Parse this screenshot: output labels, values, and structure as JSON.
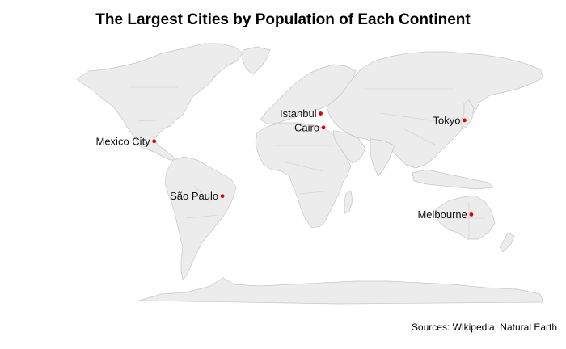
{
  "title": "The Largest Cities by Population of Each Continent",
  "sources": "Sources: Wikipedia, Natural Earth",
  "colors": {
    "land": "#ececec",
    "border": "#c6c6c6",
    "city": "#e00000",
    "background": "#ffffff"
  },
  "cities": [
    {
      "name": "Mexico City",
      "lon": -99.1,
      "lat": 19.4,
      "label_side": "left"
    },
    {
      "name": "São Paulo",
      "lon": -46.6,
      "lat": -23.5,
      "label_side": "left"
    },
    {
      "name": "Istanbul",
      "lon": 29.0,
      "lat": 41.0,
      "label_side": "left"
    },
    {
      "name": "Cairo",
      "lon": 31.2,
      "lat": 30.0,
      "label_side": "left"
    },
    {
      "name": "Tokyo",
      "lon": 139.7,
      "lat": 35.7,
      "label_side": "left"
    },
    {
      "name": "Melbourne",
      "lon": 144.9,
      "lat": -37.8,
      "label_side": "left"
    }
  ]
}
